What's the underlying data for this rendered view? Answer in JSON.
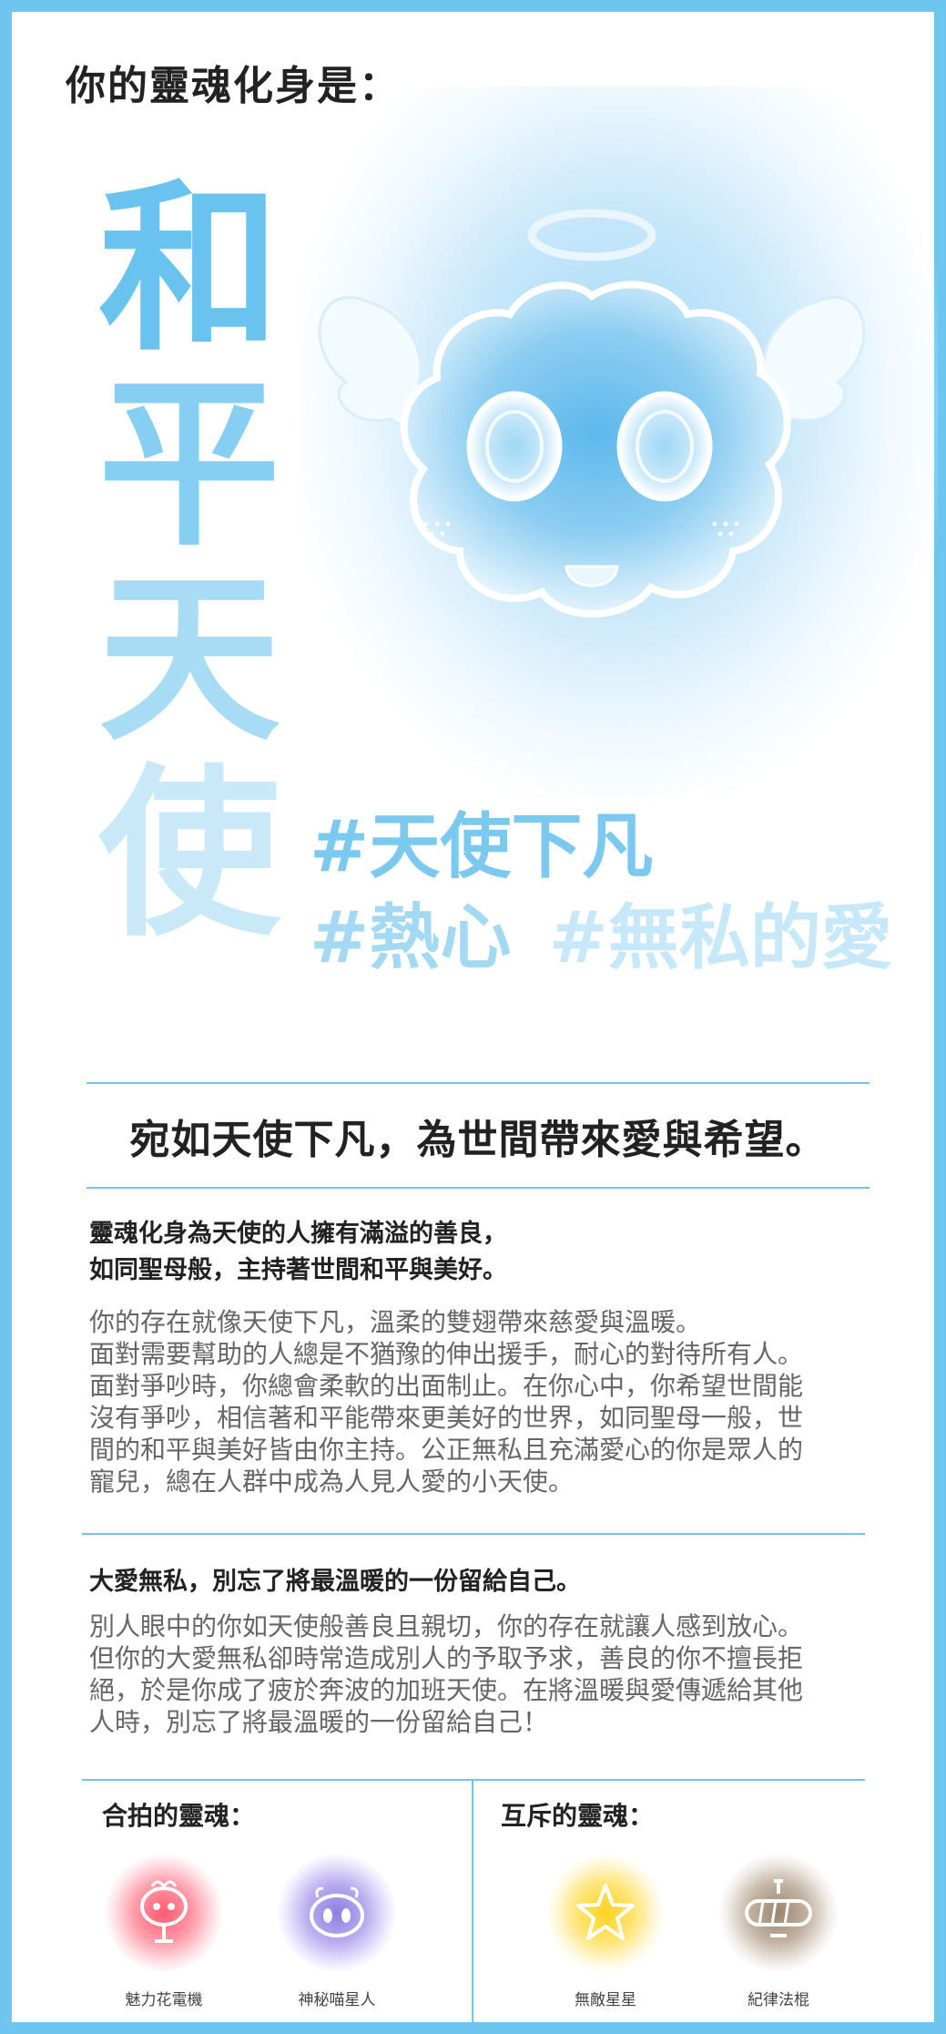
{
  "heading": "你的靈魂化身是：",
  "title_chars": [
    "和",
    "平",
    "天",
    "使"
  ],
  "tags": {
    "line1": [
      "#天使下凡"
    ],
    "line2": [
      "#熱心",
      "#無私的愛"
    ]
  },
  "slogan": "宛如天使下凡，為世間帶來愛與希望。",
  "section1": {
    "heading": "靈魂化身為天使的人擁有滿溢的善良，\n如同聖母般，主持著世間和平與美好。",
    "body": "你的存在就像天使下凡，溫柔的雙翅帶來慈愛與溫暖。\n面對需要幫助的人總是不猶豫的伸出援手，耐心的對待所有人。\n面對爭吵時，你總會柔軟的出面制止。在你心中，你希望世間能\n沒有爭吵，相信著和平能帶來更美好的世界，如同聖母一般，世\n間的和平與美好皆由你主持。公正無私且充滿愛心的你是眾人的\n寵兒，總在人群中成為人見人愛的小天使。"
  },
  "section2": {
    "heading": "大愛無私，別忘了將最溫暖的一份留給自己。",
    "body": "別人眼中的你如天使般善良且親切，你的存在就讓人感到放心。\n但你的大愛無私卻時常造成別人的予取予求，善良的你不擅長拒\n絕，於是你成了疲於奔波的加班天使。在將溫暖與愛傳遞給其他\n人時，別忘了將最溫暖的一份留給自己！"
  },
  "compatible": {
    "title": "合拍的靈魂：",
    "souls": [
      {
        "name": "魅力花電機",
        "color": "#ff5a6e"
      },
      {
        "name": "神秘喵星人",
        "color": "#8e7fe0"
      }
    ]
  },
  "incompatible": {
    "title": "互斥的靈魂：",
    "souls": [
      {
        "name": "無敵星星",
        "color": "#ffd21f"
      },
      {
        "name": "紀律法棍",
        "color": "#9b8670"
      }
    ]
  },
  "colors": {
    "frame": "#6ec6f0",
    "accent": "#7cc9f0",
    "body_text": "#666666"
  }
}
